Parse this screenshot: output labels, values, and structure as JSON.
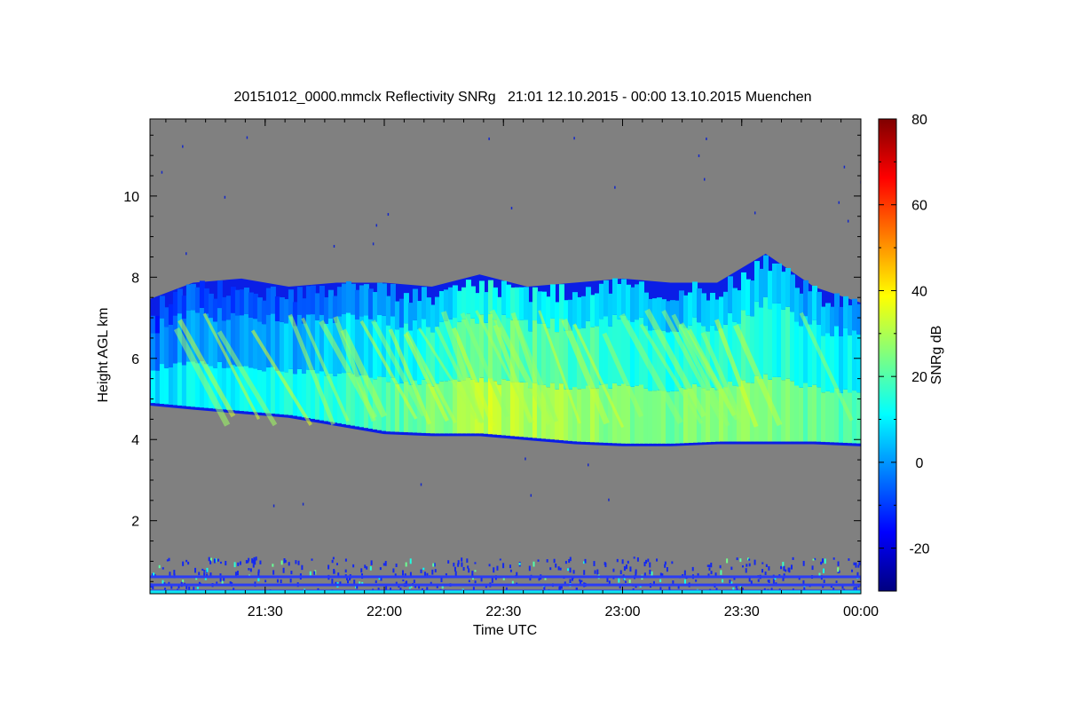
{
  "chart_data": {
    "type": "heatmap",
    "title": "20151012_0000.mmclx Reflectivity SNRg   21:01 12.10.2015 - 00:00 13.10.2015 Muenchen",
    "xlabel": "Time UTC",
    "ylabel": "Height AGL km",
    "colorbar_label": "SNRg dB",
    "x_ticks": [
      "21:30",
      "22:00",
      "22:30",
      "23:00",
      "23:30",
      "00:00"
    ],
    "x_tick_hours": [
      21.5,
      22.0,
      22.5,
      23.0,
      23.5,
      24.0
    ],
    "xlim_hours": [
      21.0167,
      24.0
    ],
    "y_ticks": [
      "2",
      "4",
      "6",
      "8",
      "10"
    ],
    "y_tick_values": [
      2,
      4,
      6,
      8,
      10
    ],
    "ylim": [
      0.2,
      11.9
    ],
    "colorbar_ticks": [
      "-20",
      "0",
      "20",
      "40",
      "60",
      "80"
    ],
    "colorbar_tick_values": [
      -20,
      0,
      20,
      40,
      60,
      80
    ],
    "colorbar_lim": [
      -30,
      80
    ],
    "colormap": [
      "#00007f",
      "#0000ff",
      "#007fff",
      "#00ffff",
      "#7fff7f",
      "#ffff00",
      "#ff7f00",
      "#ff0000",
      "#7f0000"
    ],
    "background_color": "#808080",
    "cloud_layer": {
      "time_hours": [
        21.02,
        21.2,
        21.4,
        21.6,
        21.8,
        22.0,
        22.2,
        22.4,
        22.6,
        22.8,
        23.0,
        23.2,
        23.4,
        23.6,
        23.8,
        24.0
      ],
      "base_km": [
        4.9,
        4.8,
        4.7,
        4.6,
        4.4,
        4.2,
        4.15,
        4.15,
        4.05,
        3.95,
        3.9,
        3.9,
        3.95,
        3.95,
        3.95,
        3.9
      ],
      "top_km": [
        7.4,
        7.8,
        7.9,
        7.7,
        7.8,
        7.8,
        7.7,
        8.0,
        7.7,
        7.8,
        7.9,
        7.8,
        7.8,
        8.5,
        7.7,
        7.3
      ],
      "peak_snr_db": [
        8,
        10,
        12,
        14,
        16,
        20,
        24,
        32,
        30,
        28,
        26,
        24,
        26,
        24,
        22,
        20
      ]
    },
    "grid": false
  }
}
